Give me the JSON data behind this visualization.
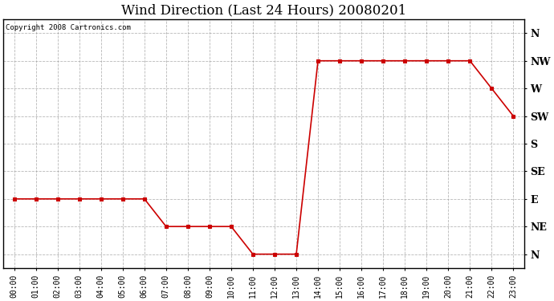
{
  "title": "Wind Direction (Last 24 Hours) 20080201",
  "copyright": "Copyright 2008 Cartronics.com",
  "line_color": "#cc0000",
  "marker": "s",
  "marker_size": 3,
  "background_color": "#ffffff",
  "grid_color": "#999999",
  "ytick_labels": [
    "N",
    "NE",
    "E",
    "SE",
    "S",
    "SW",
    "W",
    "NW",
    "N"
  ],
  "ytick_values": [
    0,
    1,
    2,
    3,
    4,
    5,
    6,
    7,
    8
  ],
  "hours": [
    0,
    1,
    2,
    3,
    4,
    5,
    6,
    7,
    8,
    9,
    10,
    11,
    12,
    13,
    14,
    15,
    16,
    17,
    18,
    19,
    20,
    21,
    22,
    23
  ],
  "wind_values": [
    2,
    2,
    2,
    2,
    2,
    2,
    2,
    1,
    1,
    1,
    1,
    0,
    0,
    0,
    7,
    7,
    7,
    7,
    7,
    7,
    7,
    7,
    6,
    5
  ],
  "ylim": [
    -0.5,
    8.5
  ],
  "xlim": [
    -0.5,
    23.5
  ],
  "figsize": [
    6.9,
    3.75
  ],
  "dpi": 100
}
